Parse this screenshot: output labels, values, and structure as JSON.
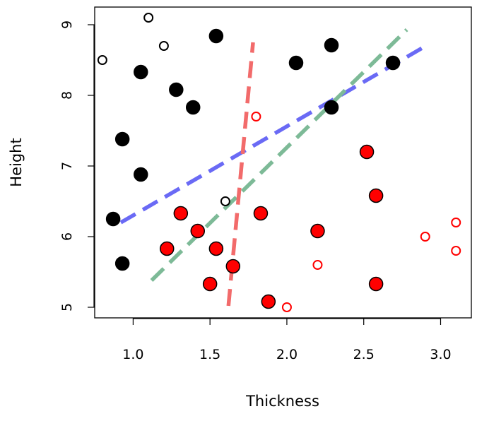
{
  "chart_data": {
    "type": "scatter",
    "xlabel": "Thickness",
    "ylabel": "Height",
    "xlim": [
      0.75,
      3.2
    ],
    "ylim": [
      4.85,
      9.25
    ],
    "x_ticks": [
      1.0,
      1.5,
      2.0,
      2.5,
      3.0
    ],
    "x_tick_labels": [
      "1.0",
      "1.5",
      "2.0",
      "2.5",
      "3.0"
    ],
    "y_ticks": [
      5,
      6,
      7,
      8,
      9
    ],
    "y_tick_labels": [
      "5",
      "6",
      "7",
      "8",
      "9"
    ],
    "grid": false,
    "colors": {
      "black": "#000000",
      "red": "#ff0000",
      "blue_line": "#6a6af5",
      "green_line": "#7dba97",
      "red_line": "#f26b6b"
    },
    "series": [
      {
        "marker": "filled-black",
        "points": [
          [
            0.87,
            6.25
          ],
          [
            0.93,
            5.62
          ],
          [
            0.93,
            7.38
          ],
          [
            1.05,
            6.88
          ],
          [
            1.05,
            8.33
          ],
          [
            1.28,
            8.08
          ],
          [
            1.39,
            7.83
          ],
          [
            1.54,
            8.84
          ],
          [
            2.06,
            8.46
          ],
          [
            2.29,
            8.71
          ],
          [
            2.29,
            7.83
          ],
          [
            2.69,
            8.46
          ]
        ]
      },
      {
        "marker": "open-black",
        "points": [
          [
            0.8,
            8.5
          ],
          [
            1.1,
            9.1
          ],
          [
            1.2,
            8.7
          ],
          [
            1.6,
            6.5
          ]
        ]
      },
      {
        "marker": "filled-red",
        "points": [
          [
            1.22,
            5.83
          ],
          [
            1.31,
            6.33
          ],
          [
            1.42,
            6.08
          ],
          [
            1.5,
            5.33
          ],
          [
            1.54,
            5.83
          ],
          [
            1.65,
            5.58
          ],
          [
            1.83,
            6.33
          ],
          [
            1.88,
            5.08
          ],
          [
            2.2,
            6.08
          ],
          [
            2.52,
            7.2
          ],
          [
            2.58,
            6.58
          ],
          [
            2.58,
            5.33
          ]
        ]
      },
      {
        "marker": "open-red",
        "points": [
          [
            1.8,
            7.7
          ],
          [
            2.0,
            5.0
          ],
          [
            2.2,
            5.6
          ],
          [
            2.9,
            6.0
          ],
          [
            3.1,
            6.2
          ],
          [
            3.1,
            5.8
          ]
        ]
      }
    ],
    "lines": [
      {
        "color_key": "blue_line",
        "style": "dashed",
        "x": [
          0.92,
          2.92
        ],
        "y": [
          6.2,
          8.72
        ]
      },
      {
        "color_key": "green_line",
        "style": "dashed",
        "x": [
          1.12,
          2.78
        ],
        "y": [
          5.38,
          8.93
        ]
      },
      {
        "color_key": "red_line",
        "style": "dashed",
        "x": [
          1.62,
          1.78
        ],
        "y": [
          5.02,
          8.75
        ]
      }
    ]
  }
}
